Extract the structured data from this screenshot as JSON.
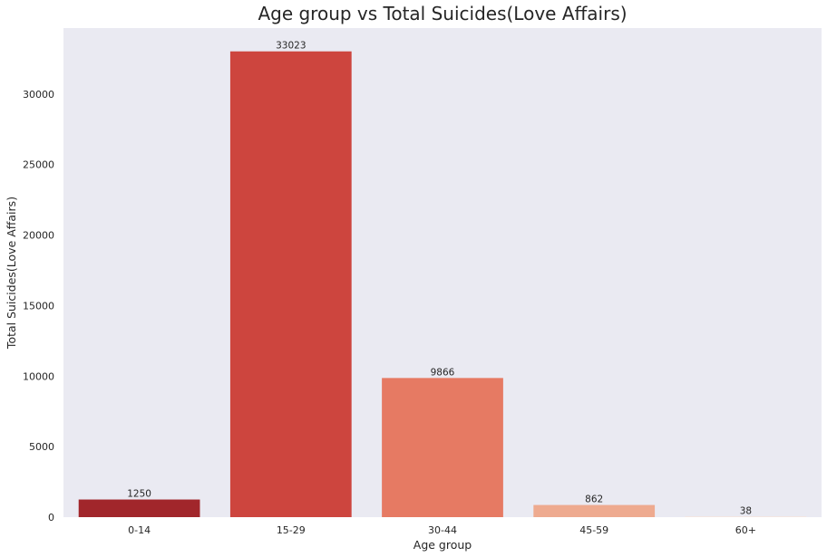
{
  "chart_data": {
    "type": "bar",
    "title": "Age group vs Total Suicides(Love Affairs)",
    "xlabel": "Age group",
    "ylabel": "Total Suicides(Love Affairs)",
    "categories": [
      "0-14",
      "15-29",
      "30-44",
      "45-59",
      "60+"
    ],
    "values": [
      1250,
      33023,
      9866,
      862,
      38
    ],
    "data_labels": [
      "1250",
      "33023",
      "9866",
      "862",
      "38"
    ],
    "ylim": [
      0,
      34675
    ],
    "yticks": [
      0,
      5000,
      10000,
      15000,
      20000,
      25000,
      30000
    ],
    "ytick_labels": [
      "0",
      "5000",
      "10000",
      "15000",
      "20000",
      "25000",
      "30000"
    ],
    "bar_colors": [
      "#a1262b",
      "#cd453e",
      "#e67a63",
      "#eeaa8f",
      "#fbe4d8"
    ],
    "background_color": "#eaeaf2",
    "grid": false,
    "legend": null
  }
}
